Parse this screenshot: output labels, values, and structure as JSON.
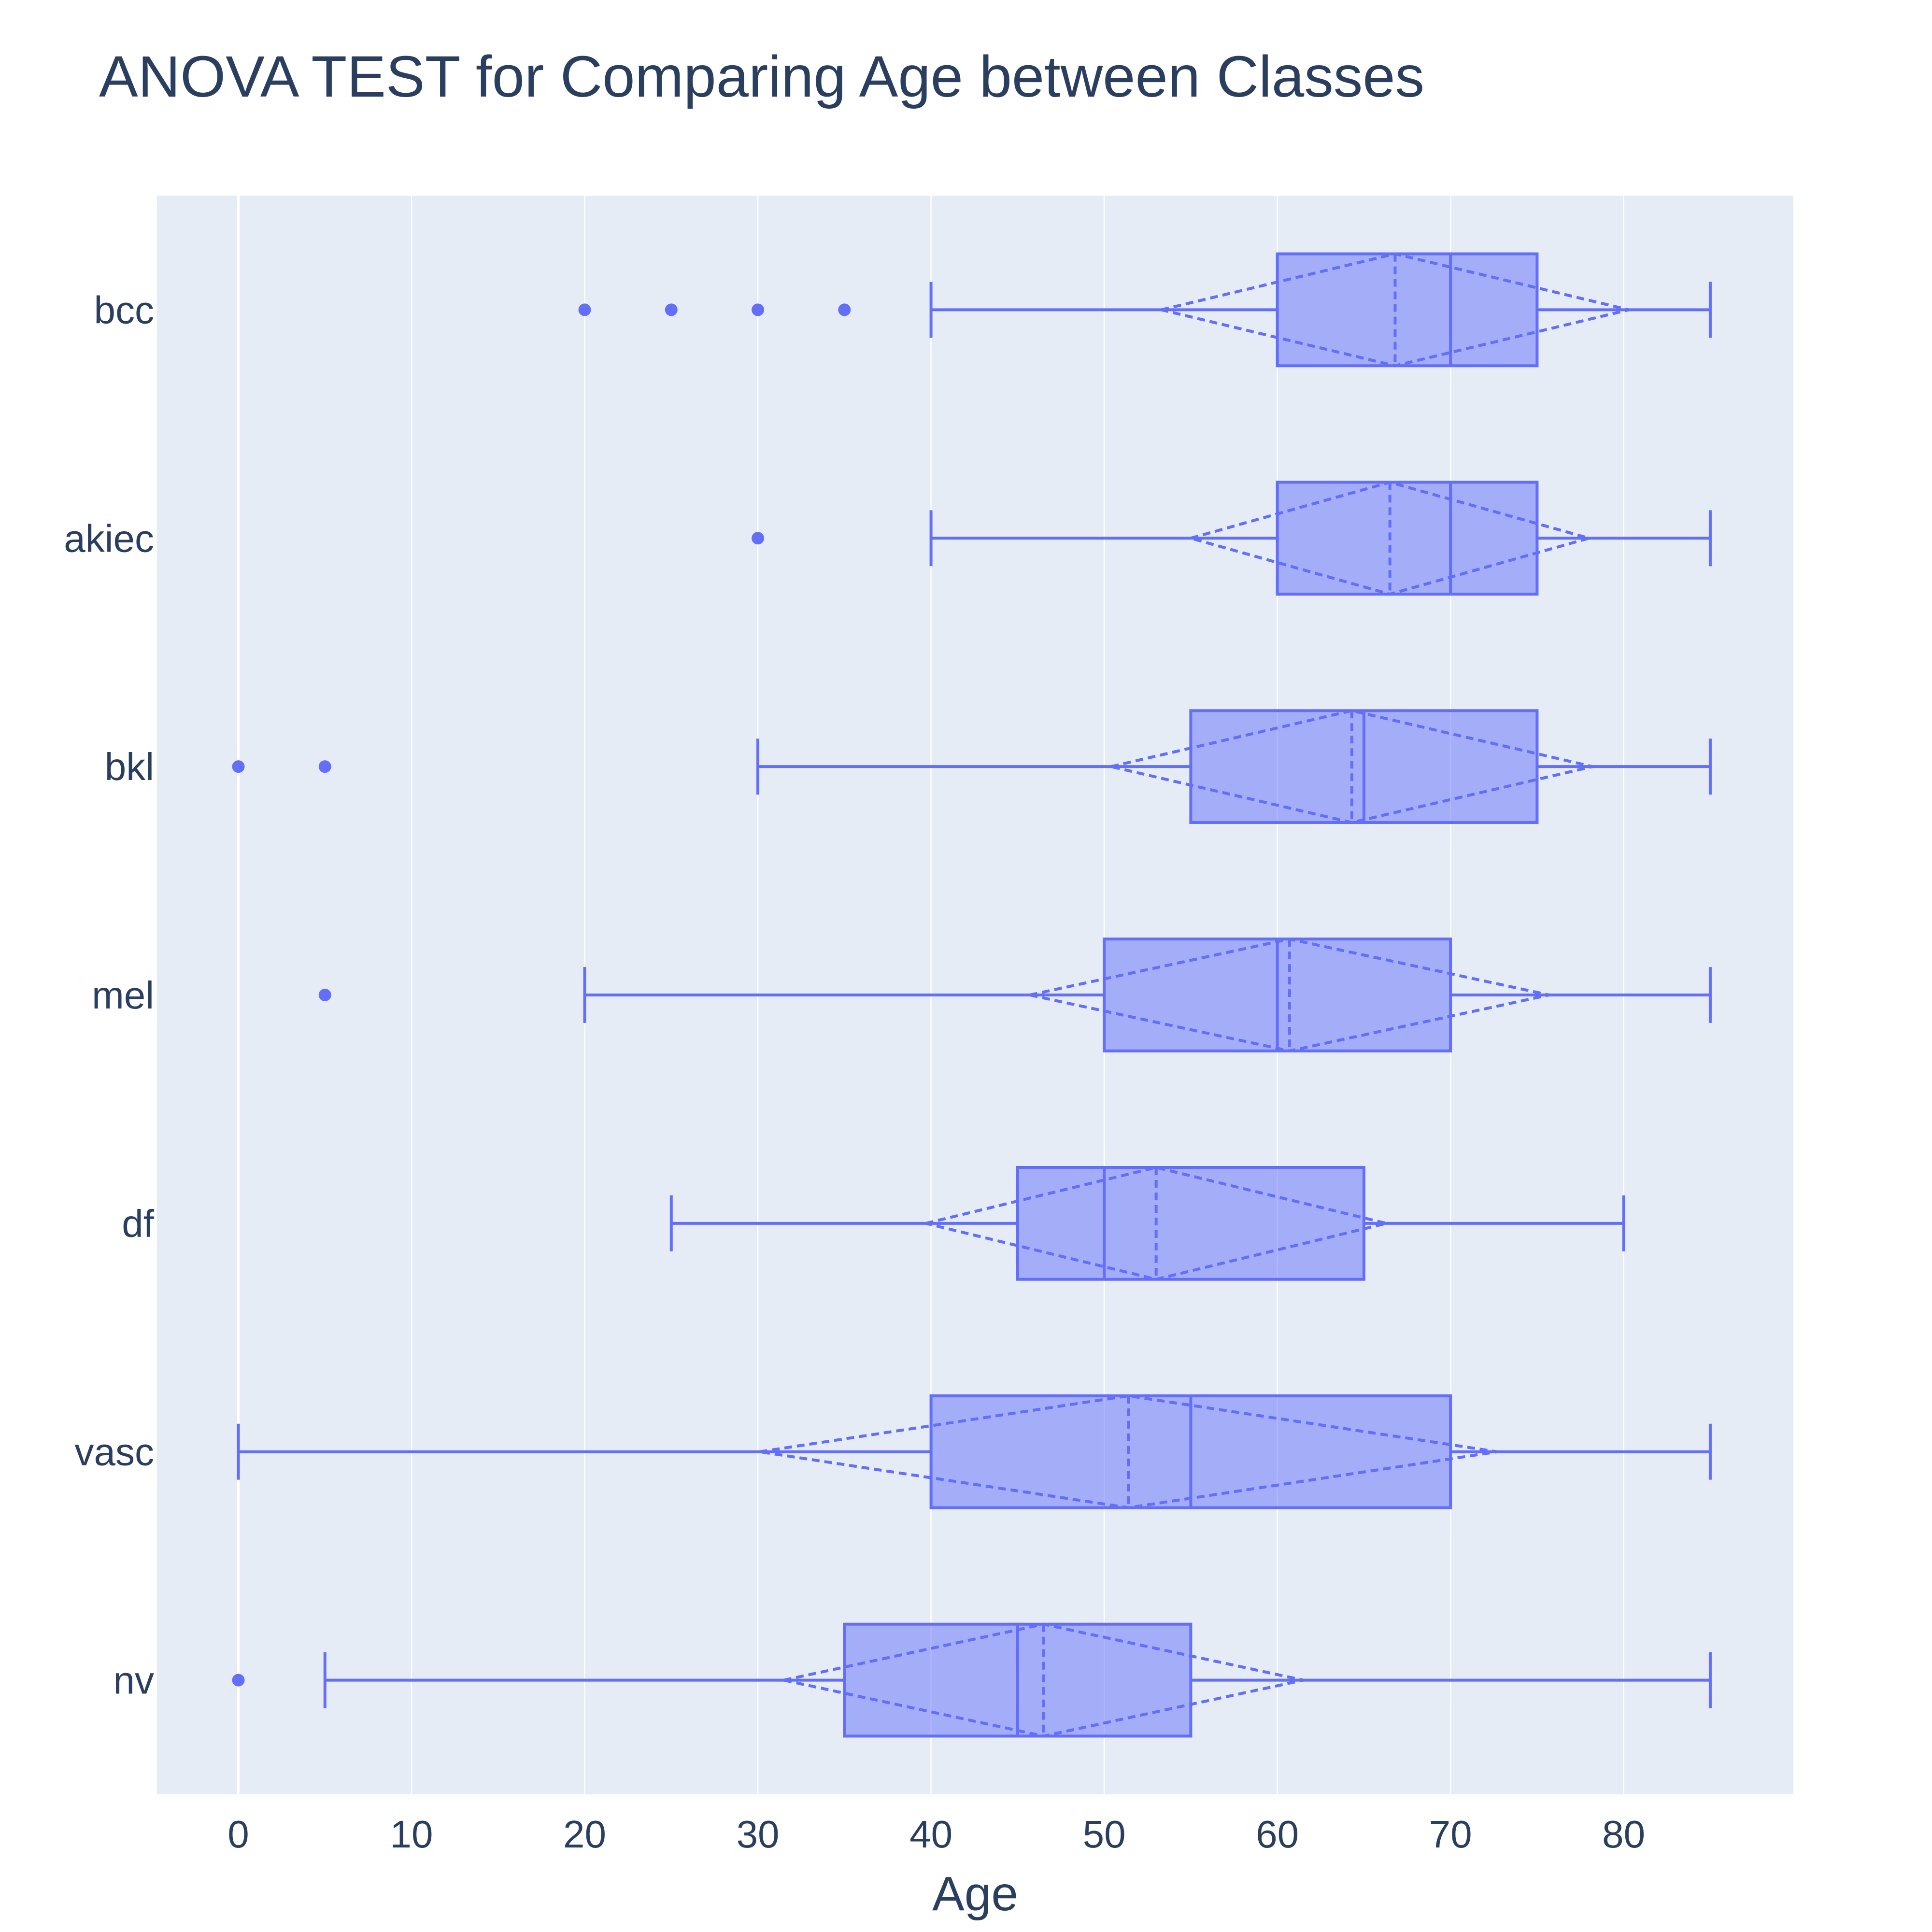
{
  "colors": {
    "background": "#ffffff",
    "plot_background": "#e5ecf6",
    "grid": "#ffffff",
    "series": "#636efa",
    "box_fill": "rgba(99,110,250,0.5)",
    "text": "#2a3f5f"
  },
  "chart_data": {
    "type": "box",
    "orientation": "horizontal",
    "title": "ANOVA TEST for Comparing Age between Classes",
    "xlabel": "Age",
    "ylabel": "",
    "xlim": [
      -4.7,
      89.8
    ],
    "xticks": [
      0,
      10,
      20,
      30,
      40,
      50,
      60,
      70,
      80
    ],
    "grid": true,
    "legend": "none",
    "boxmean": "sd",
    "categories": [
      "bcc",
      "akiec",
      "bkl",
      "mel",
      "df",
      "vasc",
      "nv"
    ],
    "boxes": [
      {
        "category": "bcc",
        "lowerfence": 40,
        "q1": 60,
        "median": 70,
        "q3": 75,
        "upperfence": 85,
        "mean": 66.8,
        "sd": 13.5,
        "outliers": [
          20,
          25,
          30,
          35
        ]
      },
      {
        "category": "akiec",
        "lowerfence": 40,
        "q1": 60,
        "median": 70,
        "q3": 75,
        "upperfence": 85,
        "mean": 66.5,
        "sd": 11.5,
        "outliers": [
          30
        ]
      },
      {
        "category": "bkl",
        "lowerfence": 30,
        "q1": 55,
        "median": 65,
        "q3": 75,
        "upperfence": 85,
        "mean": 64.3,
        "sd": 13.9,
        "outliers": [
          0,
          5
        ]
      },
      {
        "category": "mel",
        "lowerfence": 20,
        "q1": 50,
        "median": 60,
        "q3": 70,
        "upperfence": 85,
        "mean": 60.7,
        "sd": 15.0,
        "outliers": [
          5
        ]
      },
      {
        "category": "df",
        "lowerfence": 25,
        "q1": 45,
        "median": 50,
        "q3": 65,
        "upperfence": 80,
        "mean": 53.0,
        "sd": 13.3,
        "outliers": []
      },
      {
        "category": "vasc",
        "lowerfence": 0,
        "q1": 40,
        "median": 55,
        "q3": 70,
        "upperfence": 85,
        "mean": 51.4,
        "sd": 21.3,
        "outliers": []
      },
      {
        "category": "nv",
        "lowerfence": 5,
        "q1": 35,
        "median": 45,
        "q3": 55,
        "upperfence": 85,
        "mean": 46.5,
        "sd": 15.0,
        "outliers": [
          0
        ]
      }
    ]
  }
}
